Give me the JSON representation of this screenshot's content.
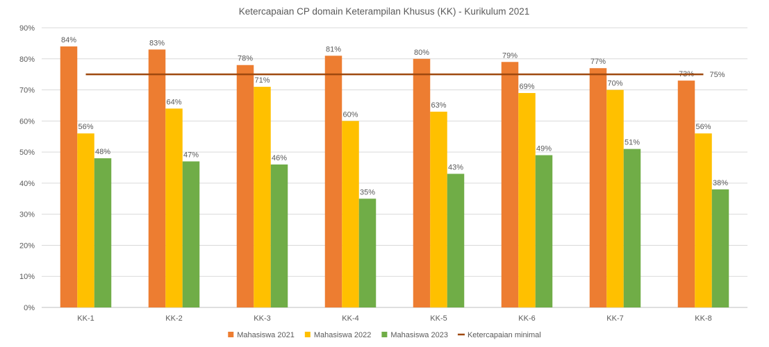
{
  "chart_data": {
    "type": "bar",
    "title": "Ketercapaian CP domain Keterampilan Khusus (KK) - Kurikulum 2021",
    "categories": [
      "KK-1",
      "KK-2",
      "KK-3",
      "KK-4",
      "KK-5",
      "KK-6",
      "KK-7",
      "KK-8"
    ],
    "series": [
      {
        "name": "Mahasiswa 2021",
        "type": "bar",
        "color": "#ED7D31",
        "values": [
          84,
          83,
          78,
          81,
          80,
          79,
          77,
          73
        ]
      },
      {
        "name": "Mahasiswa 2022",
        "type": "bar",
        "color": "#FFC000",
        "values": [
          56,
          64,
          71,
          60,
          63,
          69,
          70,
          56
        ]
      },
      {
        "name": "Mahasiswa 2023",
        "type": "bar",
        "color": "#70AD47",
        "values": [
          48,
          47,
          46,
          35,
          43,
          49,
          51,
          38
        ]
      },
      {
        "name": "Ketercapaian minimal",
        "type": "line",
        "color": "#9E480E",
        "values": [
          75,
          75,
          75,
          75,
          75,
          75,
          75,
          75
        ],
        "label": "75%"
      }
    ],
    "ylim": [
      0,
      90
    ],
    "yticks": [
      "0%",
      "10%",
      "20%",
      "30%",
      "40%",
      "50%",
      "60%",
      "70%",
      "80%",
      "90%"
    ],
    "value_suffix": "%",
    "grid": true,
    "legend_position": "bottom"
  }
}
